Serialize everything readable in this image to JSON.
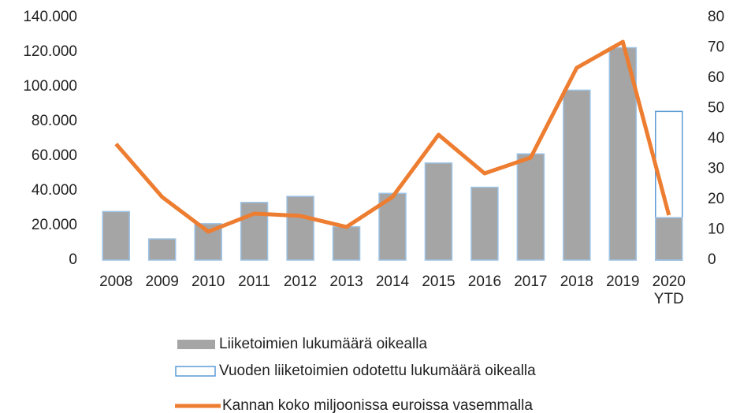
{
  "chart_data": {
    "type": "bar-line",
    "categories": [
      "2008",
      "2009",
      "2010",
      "2011",
      "2012",
      "2013",
      "2014",
      "2015",
      "2016",
      "2017",
      "2018",
      "2019",
      "2020\nYTD"
    ],
    "series": [
      {
        "name": "Liiketoimien lukumäärä oikealla",
        "type": "bar",
        "axis": "y2",
        "color": "#a5a5a5",
        "edge": "#9dc3e6",
        "values": [
          16,
          7,
          12,
          19,
          21,
          11,
          22,
          32,
          24,
          35,
          56,
          70,
          14
        ]
      },
      {
        "name": "Vuoden liiketoimien odotettu lukumäärä oikealla",
        "type": "bar-outline",
        "axis": "y2",
        "color": "#5b9bd5",
        "values": [
          null,
          null,
          null,
          null,
          null,
          null,
          null,
          null,
          null,
          null,
          null,
          null,
          49
        ]
      },
      {
        "name": "Kannan koko miljoonissa euroissa vasemmalla",
        "type": "line",
        "axis": "y",
        "color": "#ed7d31",
        "values": [
          67000,
          36400,
          16400,
          26800,
          25500,
          19100,
          36400,
          72300,
          50000,
          59100,
          110900,
          125900,
          25900
        ]
      }
    ],
    "ylim": [
      0,
      140000
    ],
    "yticks": [
      0,
      {
        "value": 20000,
        "label": "20.000"
      },
      {
        "value": 40000,
        "label": "40.000"
      },
      {
        "value": 60000,
        "label": "60.000"
      },
      {
        "value": 80000,
        "label": "80.000"
      },
      {
        "value": 100000,
        "label": "100.000"
      },
      {
        "value": 120000,
        "label": "120.000"
      },
      {
        "value": 140000,
        "label": "140.000"
      }
    ],
    "y2lim": [
      0,
      80
    ],
    "y2ticks": [
      0,
      10,
      20,
      30,
      40,
      50,
      60,
      70,
      80
    ],
    "legend": "bottom"
  }
}
